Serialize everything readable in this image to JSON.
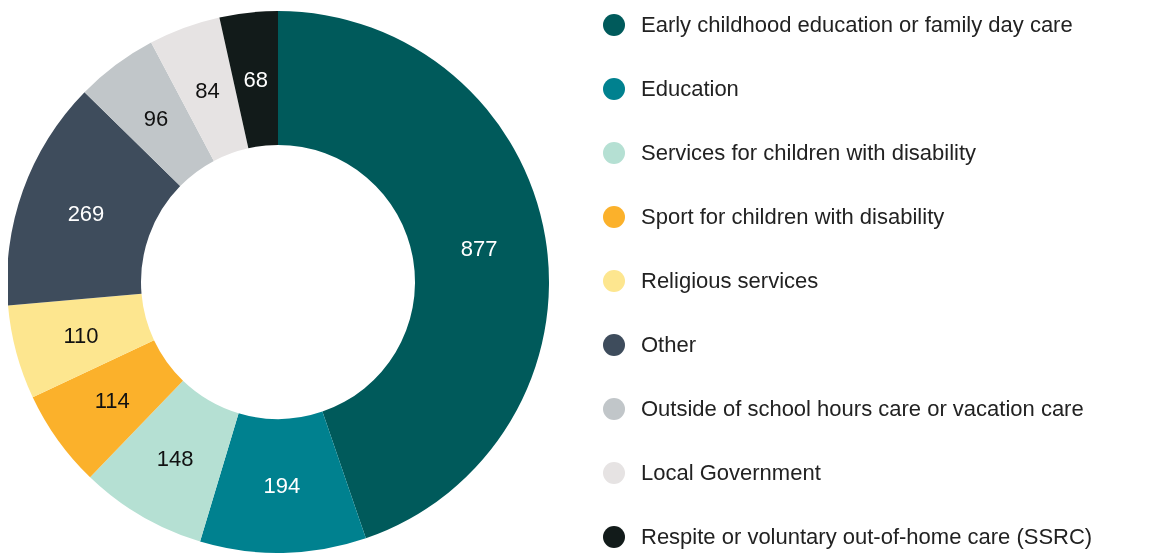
{
  "chart_data": {
    "type": "donut",
    "categories": [
      "Early childhood education or family day care",
      "Education",
      "Services for children with disability",
      "Sport for children with disability",
      "Religious services",
      "Other",
      "Outside of school hours care or vacation care",
      "Local Government",
      "Respite or voluntary out-of-home care (SSRC)"
    ],
    "values": [
      877,
      194,
      148,
      114,
      110,
      269,
      96,
      84,
      68
    ],
    "colors": [
      "#005a5b",
      "#00818f",
      "#b5e0d3",
      "#fbb12b",
      "#fde68f",
      "#3e4c5c",
      "#c1c6c9",
      "#e6e3e3",
      "#121b1a"
    ],
    "data_labels": true,
    "legend": "right"
  }
}
